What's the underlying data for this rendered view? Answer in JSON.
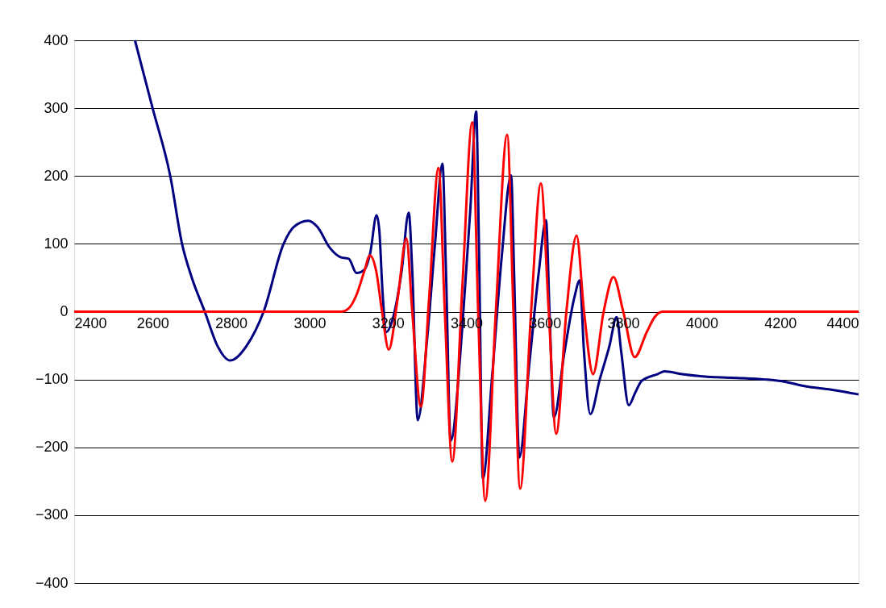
{
  "chart_data": {
    "type": "line",
    "xlim": [
      2400,
      4400
    ],
    "xticks": [
      2400,
      2600,
      2800,
      3000,
      3200,
      3400,
      3600,
      3800,
      4000,
      4200,
      4400
    ],
    "ylim": [
      -400,
      400
    ],
    "yticks": [
      -400,
      -300,
      -200,
      -100,
      0,
      100,
      200,
      300,
      400
    ],
    "grid": "y",
    "marker": "none",
    "line_style": "solid",
    "series": [
      {
        "color": "#000080",
        "x": [
          2555,
          2600,
          2645,
          2675,
          2700,
          2733,
          2765,
          2798,
          2840,
          2883,
          2934,
          2960,
          2997,
          3020,
          3052,
          3080,
          3100,
          3120,
          3140,
          3155,
          3171,
          3178,
          3186,
          3196,
          3210,
          3235,
          3253,
          3262,
          3276,
          3300,
          3320,
          3339,
          3348,
          3360,
          3390,
          3410,
          3425,
          3432,
          3442,
          3465,
          3490,
          3514,
          3522,
          3535,
          3560,
          3585,
          3603,
          3612,
          3623,
          3650,
          3675,
          3689,
          3700,
          3716,
          3740,
          3765,
          3783,
          3795,
          3814,
          3830,
          3847,
          3888,
          3905,
          3950,
          3997,
          4050,
          4100,
          4162,
          4210,
          4264,
          4330,
          4400
        ],
        "values": [
          400,
          300,
          200,
          100,
          50,
          0,
          -50,
          -72,
          -50,
          0,
          100,
          125,
          134,
          125,
          94,
          80,
          78,
          57,
          62,
          87,
          142,
          120,
          31,
          -30,
          -15,
          60,
          146,
          60,
          -160,
          -40,
          100,
          218,
          60,
          -190,
          -20,
          150,
          295,
          100,
          -246,
          -100,
          80,
          201,
          50,
          -215,
          -80,
          60,
          135,
          0,
          -156,
          -60,
          20,
          46,
          -60,
          -151,
          -100,
          -50,
          -8,
          -60,
          -138,
          -120,
          -102,
          -92,
          -88,
          -92,
          -95,
          -97,
          -98,
          -100,
          -103,
          -110,
          -115,
          -122
        ]
      },
      {
        "color": "#ff0000",
        "x": [
          2400,
          3080,
          3100,
          3120,
          3140,
          3154,
          3170,
          3185,
          3202,
          3225,
          3247,
          3262,
          3284,
          3305,
          3329,
          3345,
          3364,
          3390,
          3415,
          3430,
          3448,
          3475,
          3504,
          3520,
          3537,
          3565,
          3590,
          3610,
          3629,
          3655,
          3681,
          3700,
          3723,
          3750,
          3775,
          3800,
          3829,
          3860,
          3880,
          3900,
          4400
        ],
        "values": [
          0,
          0,
          5,
          25,
          60,
          83,
          60,
          0,
          -56,
          20,
          108,
          0,
          -140,
          20,
          212,
          0,
          -221,
          40,
          279,
          0,
          -279,
          0,
          261,
          0,
          -261,
          0,
          189,
          0,
          -180,
          0,
          112,
          0,
          -92,
          0,
          51,
          0,
          -67,
          -30,
          -8,
          0,
          0
        ]
      }
    ]
  }
}
